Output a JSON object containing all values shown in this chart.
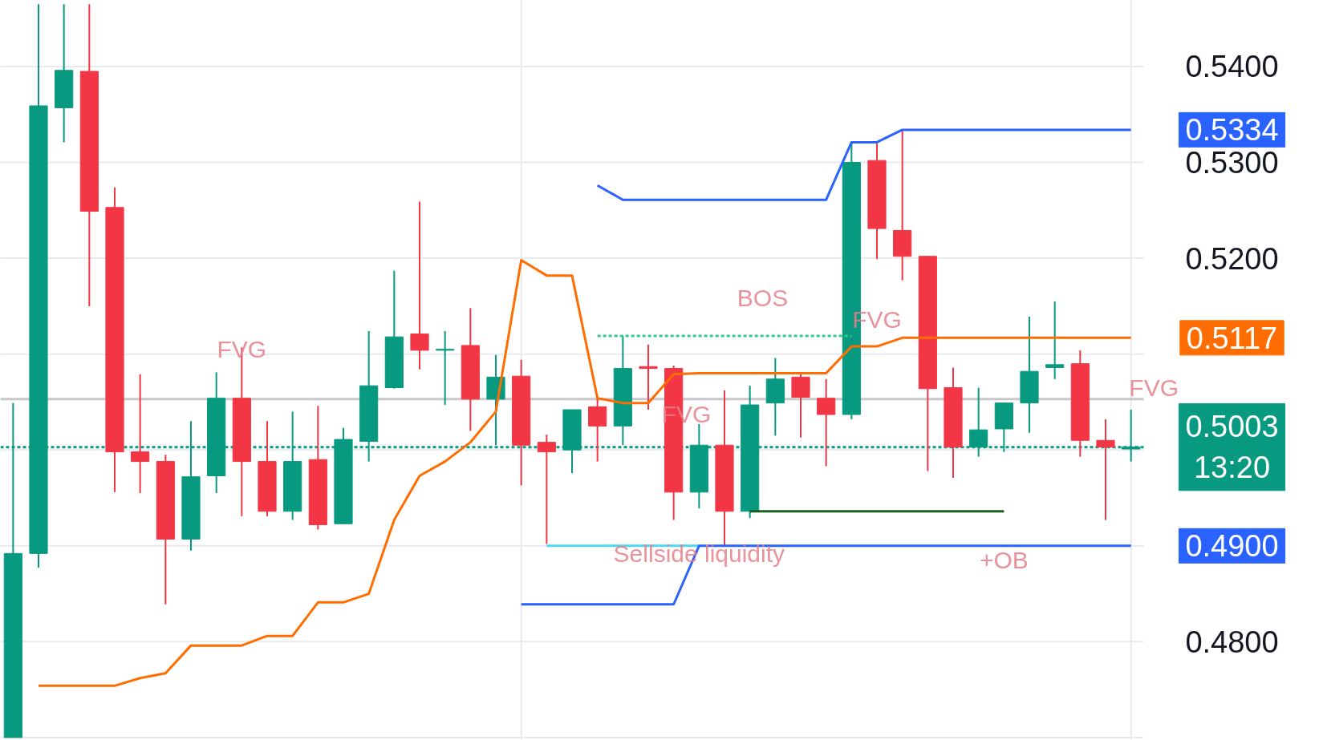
{
  "chart_data": {
    "type": "candlestick",
    "categories": [
      null,
      null,
      null,
      null,
      null,
      null,
      null,
      null,
      null,
      null,
      null,
      null,
      null,
      null,
      null,
      null,
      null,
      null,
      null,
      null,
      null,
      null,
      null,
      null,
      null,
      null,
      null,
      null,
      null,
      null,
      null,
      null,
      null,
      null,
      null,
      null,
      null,
      null,
      null,
      null,
      null,
      null,
      null,
      null,
      null
    ],
    "ohlc": [
      [
        0.47,
        0.5049,
        0.47,
        0.4892
      ],
      [
        0.4892,
        0.5465,
        0.4877,
        0.5359
      ],
      [
        0.5357,
        0.5465,
        0.5321,
        0.5396
      ],
      [
        0.5395,
        0.5465,
        0.515,
        0.5249
      ],
      [
        0.5253,
        0.5274,
        0.4956,
        0.4998
      ],
      [
        0.4998,
        0.5079,
        0.4955,
        0.4988
      ],
      [
        0.4988,
        0.4995,
        0.4839,
        0.4907
      ],
      [
        0.4907,
        0.503,
        0.4895,
        0.4972
      ],
      [
        0.4973,
        0.5081,
        0.4955,
        0.5054
      ],
      [
        0.5054,
        0.5107,
        0.4931,
        0.4988
      ],
      [
        0.4988,
        0.503,
        0.4931,
        0.4936
      ],
      [
        0.4936,
        0.504,
        0.4927,
        0.4988
      ],
      [
        0.499,
        0.5046,
        0.4917,
        0.4922
      ],
      [
        0.4923,
        0.5023,
        0.4923,
        0.5011
      ],
      [
        0.5009,
        0.5124,
        0.4988,
        0.5067
      ],
      [
        0.5065,
        0.5187,
        0.5064,
        0.5118
      ],
      [
        0.5121,
        0.5259,
        0.5084,
        0.5104
      ],
      [
        0.5104,
        0.5124,
        0.5047,
        0.5105
      ],
      [
        0.5109,
        0.5148,
        0.502,
        0.5053
      ],
      [
        0.5053,
        0.5099,
        0.5005,
        0.5076
      ],
      [
        0.5077,
        0.5094,
        0.4963,
        0.5005
      ],
      [
        0.5008,
        0.5016,
        0.4902,
        0.4998
      ],
      [
        0.5,
        0.5042,
        0.4976,
        0.5042
      ],
      [
        0.5045,
        0.5054,
        0.4988,
        0.5025
      ],
      [
        0.5025,
        0.5119,
        0.5005,
        0.5085
      ],
      [
        0.5087,
        0.511,
        0.5042,
        0.5085
      ],
      [
        0.5085,
        0.5088,
        0.4927,
        0.4956
      ],
      [
        0.4956,
        0.5027,
        0.4939,
        0.5005
      ],
      [
        0.5005,
        0.5062,
        0.49,
        0.4936
      ],
      [
        0.4936,
        0.5067,
        0.4929,
        0.5047
      ],
      [
        0.5049,
        0.5096,
        0.5015,
        0.5074
      ],
      [
        0.5076,
        0.5081,
        0.5013,
        0.5055
      ],
      [
        0.5054,
        0.5074,
        0.4983,
        0.5037
      ],
      [
        0.5037,
        0.532,
        0.5032,
        0.53
      ],
      [
        0.5302,
        0.532,
        0.5199,
        0.5231
      ],
      [
        0.5229,
        0.5334,
        0.5177,
        0.5202
      ],
      [
        0.5202,
        0.5202,
        0.4978,
        0.5064
      ],
      [
        0.5065,
        0.5086,
        0.4971,
        0.5003
      ],
      [
        0.5003,
        0.5065,
        0.4993,
        0.5021
      ],
      [
        0.5022,
        0.5049,
        0.4998,
        0.5049
      ],
      [
        0.5049,
        0.5139,
        0.5018,
        0.5082
      ],
      [
        0.5086,
        0.5155,
        0.5074,
        0.5089
      ],
      [
        0.509,
        0.5104,
        0.4993,
        0.501
      ],
      [
        0.501,
        0.5032,
        0.4927,
        0.5003
      ],
      [
        0.5001,
        0.5042,
        0.4988,
        0.5003
      ]
    ],
    "colors": [
      "#089981",
      "#089981",
      "#089981",
      "#f23645",
      "#f23645",
      "#f23645",
      "#f23645",
      "#089981",
      "#089981",
      "#f23645",
      "#f23645",
      "#089981",
      "#f23645",
      "#089981",
      "#089981",
      "#089981",
      "#f23645",
      "#089981",
      "#f23645",
      "#089981",
      "#f23645",
      "#f23645",
      "#089981",
      "#f23645",
      "#089981",
      "#f23645",
      "#f23645",
      "#089981",
      "#f23645",
      "#089981",
      "#089981",
      "#f23645",
      "#f23645",
      "#089981",
      "#f23645",
      "#f23645",
      "#f23645",
      "#f23645",
      "#089981",
      "#089981",
      "#089981",
      "#089981",
      "#f23645",
      "#f23645",
      "#089981"
    ],
    "series": [
      {
        "type": "line",
        "color": "#2962ff",
        "values": [
          null,
          null,
          null,
          null,
          null,
          null,
          null,
          null,
          null,
          null,
          null,
          null,
          null,
          null,
          null,
          null,
          null,
          null,
          null,
          null,
          null,
          null,
          null,
          0.5276,
          0.5261,
          0.5261,
          0.5261,
          0.5261,
          0.5261,
          0.5261,
          0.5261,
          0.5261,
          0.5261,
          0.5321,
          0.5321,
          0.5334,
          0.5334,
          0.5334,
          0.5334,
          0.5334,
          0.5334,
          0.5334,
          0.5334,
          0.5334,
          0.5334
        ],
        "value_labels": [
          null,
          null,
          null,
          null,
          null,
          null,
          null,
          null,
          null,
          null,
          null,
          null,
          null,
          null,
          null,
          null,
          null,
          null,
          null,
          null,
          null,
          null,
          null,
          null,
          null,
          null,
          null,
          null,
          null,
          null,
          null,
          null,
          null,
          null,
          null,
          null,
          null,
          null,
          null,
          null,
          null,
          null,
          null,
          null,
          "0.5334"
        ]
      },
      {
        "type": "line",
        "color": "#2962ff",
        "values": [
          null,
          null,
          null,
          null,
          null,
          null,
          null,
          null,
          null,
          null,
          null,
          null,
          null,
          null,
          null,
          null,
          null,
          null,
          null,
          null,
          0.4839,
          0.4839,
          0.4839,
          0.4839,
          0.4839,
          0.4839,
          0.4839,
          0.49,
          0.49,
          0.49,
          0.49,
          0.49,
          0.49,
          0.49,
          0.49,
          0.49,
          0.49,
          0.49,
          0.49,
          0.49,
          0.49,
          0.49,
          0.49,
          0.49,
          0.49
        ],
        "value_labels": [
          null,
          null,
          null,
          null,
          null,
          null,
          null,
          null,
          null,
          null,
          null,
          null,
          null,
          null,
          null,
          null,
          null,
          null,
          null,
          null,
          null,
          null,
          null,
          null,
          null,
          null,
          null,
          null,
          null,
          null,
          null,
          null,
          null,
          null,
          null,
          null,
          null,
          null,
          null,
          null,
          null,
          null,
          null,
          null,
          "0.4900"
        ]
      },
      {
        "type": "line",
        "color": "#ff6d00",
        "values": [
          null,
          0.4754,
          0.4754,
          0.4754,
          0.4754,
          0.4762,
          0.4767,
          0.4796,
          0.4796,
          0.4796,
          0.4806,
          0.4806,
          0.4841,
          0.4841,
          0.485,
          0.4927,
          0.4973,
          0.4988,
          0.5008,
          0.504,
          0.5198,
          0.5182,
          0.5182,
          0.5054,
          0.5049,
          0.5049,
          0.5079,
          0.508,
          0.508,
          0.508,
          0.508,
          0.508,
          0.508,
          0.5108,
          0.5108,
          0.5117,
          0.5117,
          0.5117,
          0.5117,
          0.5117,
          0.5117,
          0.5117,
          0.5117,
          0.5117,
          0.5117
        ],
        "value_labels": [
          null,
          null,
          null,
          null,
          null,
          null,
          null,
          null,
          null,
          null,
          null,
          null,
          null,
          null,
          null,
          null,
          null,
          null,
          null,
          null,
          null,
          null,
          null,
          null,
          null,
          null,
          null,
          null,
          null,
          null,
          null,
          null,
          null,
          null,
          null,
          null,
          null,
          null,
          null,
          null,
          null,
          null,
          null,
          null,
          "0.5117"
        ]
      },
      {
        "type": "line",
        "color": "#1b5e20",
        "values": [
          null,
          null,
          null,
          null,
          null,
          null,
          null,
          null,
          null,
          null,
          null,
          null,
          null,
          null,
          null,
          null,
          null,
          null,
          null,
          null,
          null,
          null,
          null,
          null,
          null,
          null,
          null,
          null,
          null,
          0.4936,
          0.4936,
          0.4936,
          0.4936,
          0.4936,
          0.4936,
          0.4936,
          0.4936,
          0.4936,
          0.4936,
          0.4936,
          null,
          null,
          null,
          null,
          null
        ]
      },
      {
        "type": "line",
        "color": "#4dd8f0",
        "values": [
          null,
          null,
          null,
          null,
          null,
          null,
          null,
          null,
          null,
          null,
          null,
          null,
          null,
          null,
          null,
          null,
          null,
          null,
          null,
          null,
          null,
          0.49,
          0.49,
          0.49,
          0.49,
          0.49,
          0.49,
          0.49,
          null,
          null,
          null,
          null,
          null,
          null,
          null,
          null,
          null,
          null,
          null,
          null,
          null,
          null,
          null,
          null,
          null
        ]
      },
      {
        "type": "line",
        "color": "#36c98e",
        "line_style": "dotted",
        "values": [
          null,
          null,
          null,
          null,
          null,
          null,
          null,
          null,
          null,
          null,
          null,
          null,
          null,
          null,
          null,
          null,
          null,
          null,
          null,
          null,
          null,
          null,
          null,
          0.5119,
          0.5119,
          0.5119,
          0.5119,
          0.5119,
          0.5119,
          0.5119,
          0.5119,
          0.5119,
          0.5119,
          0.5119,
          null,
          null,
          null,
          null,
          null,
          null,
          null,
          null,
          null,
          null,
          null
        ]
      }
    ],
    "ref_lines": [
      {
        "axis": "y",
        "value": 0.5053,
        "label": null,
        "color": "#c8c8cc"
      },
      {
        "axis": "y",
        "value": 0.5003,
        "label": "0.5003\n13:20",
        "color": "#089981",
        "line_style": "dotted"
      }
    ],
    "annotations": [
      "FVG",
      "BOS",
      "FVG",
      "FVG",
      "FVG",
      "Sellside liquidity",
      "+OB"
    ],
    "ylim": [
      0.4697,
      0.5469
    ],
    "yticks": [
      {
        "value": 0.47,
        "label": null
      },
      {
        "value": 0.48,
        "label": "0.4800"
      },
      {
        "value": 0.49,
        "label": null
      },
      {
        "value": 0.5,
        "label": null
      },
      {
        "value": 0.51,
        "label": null
      },
      {
        "value": 0.52,
        "label": "0.5200"
      },
      {
        "value": 0.53,
        "label": "0.5300"
      },
      {
        "value": 0.54,
        "label": "0.5400"
      }
    ],
    "grid": true,
    "tick_labels": "y"
  }
}
